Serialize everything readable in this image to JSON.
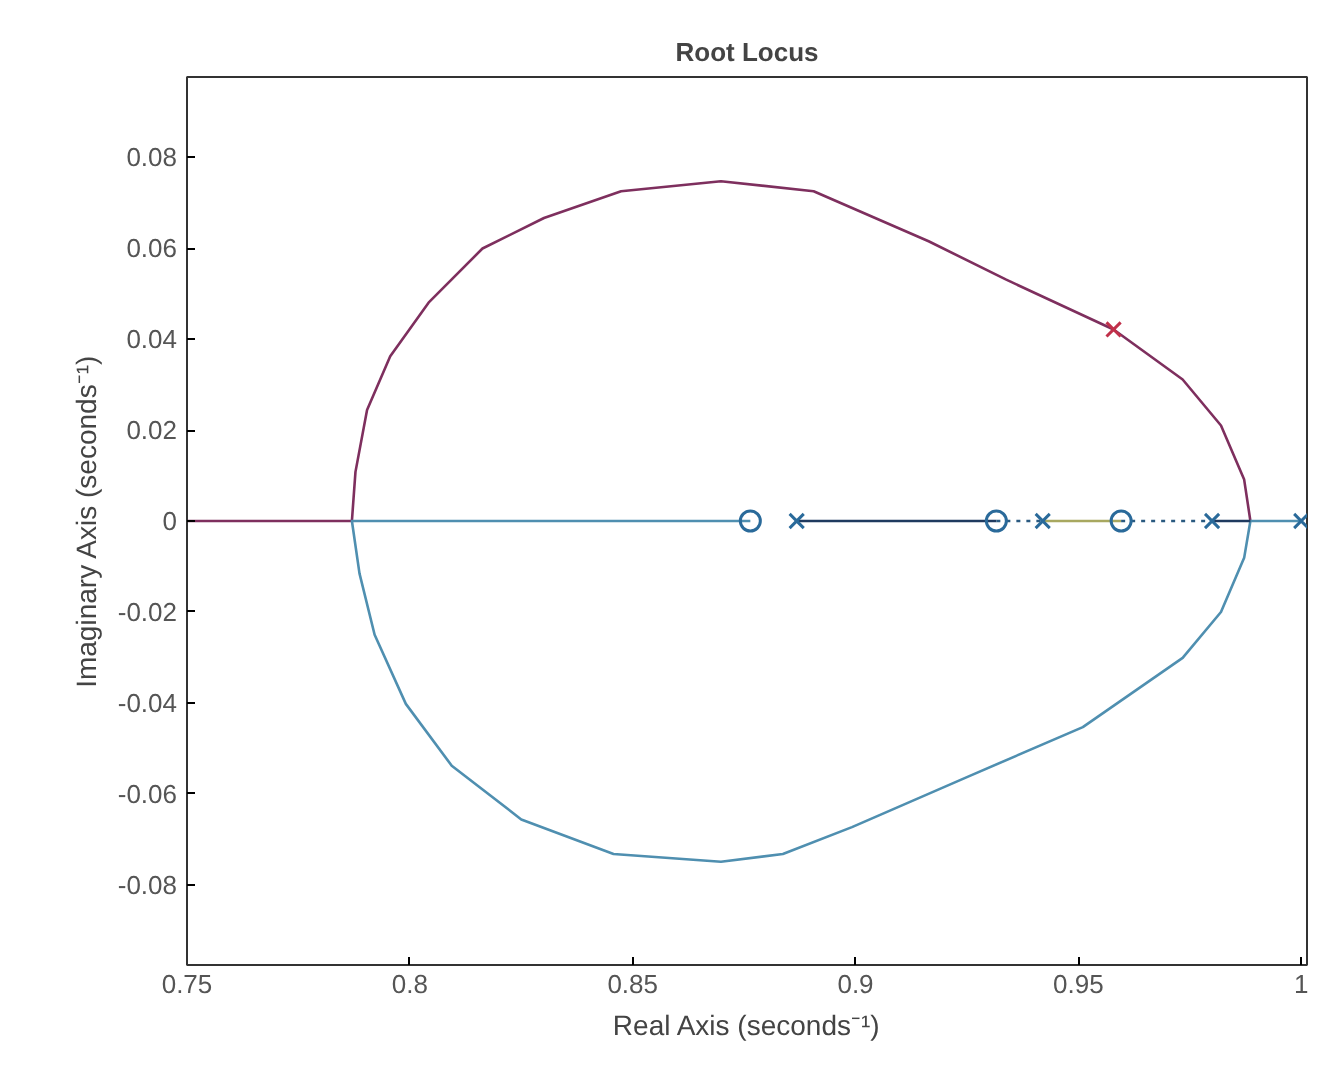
{
  "chart_data": {
    "type": "line",
    "title": "Root Locus",
    "xlabel": "Real Axis (seconds⁻¹)",
    "ylabel": "Imaginary Axis (seconds⁻¹)",
    "xlim": [
      0.75,
      1.0013
    ],
    "ylim": [
      -0.0976,
      0.0976
    ],
    "xticks": [
      0.75,
      0.8,
      0.85,
      0.9,
      0.95,
      1
    ],
    "yticks": [
      -0.08,
      -0.06,
      -0.04,
      -0.02,
      0,
      0.02,
      0.04,
      0.06,
      0.08
    ],
    "series": [
      {
        "color": "#7e2f5e",
        "x": [
          0.75,
          0.787,
          0.7878,
          0.7904,
          0.7956,
          0.8042,
          0.8163,
          0.8301,
          0.8474,
          0.8698,
          0.8906,
          0.9164,
          0.9337,
          0.9579,
          0.9734,
          0.982,
          0.9872,
          0.9886
        ],
        "values": [
          0,
          0,
          0.0108,
          0.0244,
          0.0362,
          0.048,
          0.0599,
          0.0666,
          0.0725,
          0.0747,
          0.0725,
          0.0615,
          0.0531,
          0.0421,
          0.0311,
          0.021,
          0.0091,
          0
        ]
      },
      {
        "color": "#4f8fb0",
        "x": [
          0.8764,
          0.787,
          0.7887,
          0.7921,
          0.7991,
          0.8094,
          0.825,
          0.8457,
          0.8698,
          0.8837,
          0.8992,
          0.925,
          0.951,
          0.9734,
          0.982,
          0.9872,
          0.9886,
          1.0
        ],
        "values": [
          0,
          0,
          -0.0115,
          -0.025,
          -0.0402,
          -0.0538,
          -0.0656,
          -0.0732,
          -0.0749,
          -0.0732,
          -0.0673,
          -0.0563,
          -0.0453,
          -0.0301,
          -0.02,
          -0.0081,
          0,
          0
        ]
      },
      {
        "color": "#1f3a5f",
        "x": [
          0.8868,
          0.9316
        ],
        "values": [
          0,
          0
        ]
      },
      {
        "color": "#a8a860",
        "x": [
          0.942,
          0.9596
        ],
        "values": [
          0,
          0
        ]
      },
      {
        "color": "#1f3a5f",
        "x": [
          0.98,
          0.9886
        ],
        "values": [
          0,
          0
        ]
      },
      {
        "color": "#2a5a80",
        "line_style": "dotted",
        "x": [
          0.9316,
          0.942
        ],
        "values": [
          0,
          0
        ]
      },
      {
        "color": "#2a5a80",
        "line_style": "dotted",
        "x": [
          0.9596,
          0.98
        ],
        "values": [
          0,
          0
        ]
      },
      {
        "type": "scatter",
        "marker": "circle",
        "color": "#2a6a9a",
        "x": [
          0.8764,
          0.9316,
          0.9596
        ],
        "values": [
          0,
          0,
          0
        ]
      },
      {
        "type": "scatter",
        "marker": "cross",
        "color": "#2a6a9a",
        "x": [
          0.8868,
          0.942,
          0.98,
          1.0
        ],
        "values": [
          0,
          0,
          0,
          0
        ]
      },
      {
        "type": "scatter",
        "marker": "cross",
        "color": "#c0304a",
        "x": [
          0.9579
        ],
        "values": [
          0.0421
        ]
      }
    ]
  }
}
